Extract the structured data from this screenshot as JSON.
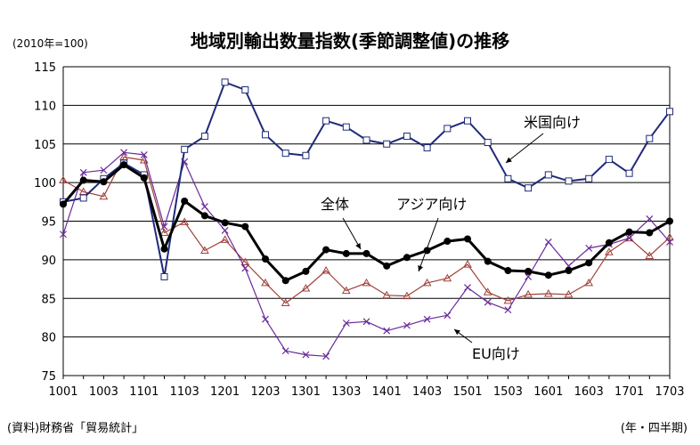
{
  "title": "地域別輸出数量指数(季節調整値)の推移",
  "unit_label": "(2010年=100)",
  "source": "(資料)財務省「貿易統計」",
  "x_unit": "(年・四半期)",
  "chart_data": {
    "type": "line",
    "title": "地域別輸出数量指数(季節調整値)の推移",
    "ylim": [
      75,
      115
    ],
    "yticks": [
      75,
      80,
      85,
      90,
      95,
      100,
      105,
      110,
      115
    ],
    "grid": true,
    "x": [
      "1001",
      "1002",
      "1003",
      "1004",
      "1101",
      "1102",
      "1103",
      "1104",
      "1201",
      "1202",
      "1203",
      "1204",
      "1301",
      "1302",
      "1303",
      "1304",
      "1401",
      "1402",
      "1403",
      "1404",
      "1501",
      "1502",
      "1503",
      "1504",
      "1601",
      "1602",
      "1603",
      "1604",
      "1701",
      "1702",
      "1703"
    ],
    "xtick_labels": [
      "1001",
      "1003",
      "1101",
      "1103",
      "1201",
      "1203",
      "1301",
      "1303",
      "1401",
      "1403",
      "1501",
      "1503",
      "1601",
      "1603",
      "1701",
      "1703"
    ],
    "series": [
      {
        "name": "米国向け",
        "color": "#1f2a7a",
        "marker": "square",
        "values": [
          97.5,
          98.0,
          100.5,
          102.5,
          101.0,
          87.8,
          104.3,
          106.0,
          113.0,
          112.0,
          106.2,
          103.8,
          103.5,
          108.0,
          107.2,
          105.5,
          105.0,
          106.0,
          104.5,
          107.0,
          108.0,
          105.2,
          100.5,
          99.3,
          101.0,
          100.2,
          100.5,
          103.0,
          101.2,
          105.7,
          109.2
        ]
      },
      {
        "name": "全体",
        "color": "#000000",
        "marker": "circle",
        "values": [
          97.2,
          100.3,
          100.1,
          102.3,
          100.6,
          91.4,
          97.6,
          95.7,
          94.8,
          94.3,
          90.1,
          87.3,
          88.5,
          91.3,
          90.8,
          90.8,
          89.2,
          90.3,
          91.2,
          92.4,
          92.7,
          89.8,
          88.6,
          88.5,
          88.0,
          88.6,
          89.6,
          92.2,
          93.6,
          93.5,
          95.0
        ]
      },
      {
        "name": "アジア向け",
        "color": "#a0413a",
        "marker": "triangle",
        "values": [
          100.3,
          98.8,
          98.2,
          103.3,
          102.9,
          93.5,
          94.9,
          91.2,
          92.6,
          89.7,
          87.0,
          84.4,
          86.3,
          88.6,
          86.0,
          87.0,
          85.4,
          85.3,
          87.0,
          87.6,
          89.4,
          85.8,
          84.7,
          85.5,
          85.6,
          85.5,
          87.0,
          91.0,
          92.8,
          90.5,
          92.9
        ]
      },
      {
        "name": "EU向け",
        "color": "#6a2a9a",
        "marker": "x",
        "values": [
          93.3,
          101.3,
          101.6,
          103.9,
          103.6,
          94.3,
          102.7,
          96.9,
          93.8,
          88.9,
          82.3,
          78.2,
          77.7,
          77.5,
          81.8,
          82.0,
          80.8,
          81.5,
          82.3,
          82.8,
          86.4,
          84.5,
          83.5,
          87.8,
          92.3,
          89.2,
          91.5,
          92.0,
          92.8,
          95.3,
          92.3
        ]
      }
    ],
    "annotations": [
      {
        "text": "米国向け",
        "series": "米国向け"
      },
      {
        "text": "全体",
        "series": "全体"
      },
      {
        "text": "アジア向け",
        "series": "アジア向け"
      },
      {
        "text": "EU向け",
        "series": "EU向け"
      }
    ]
  }
}
